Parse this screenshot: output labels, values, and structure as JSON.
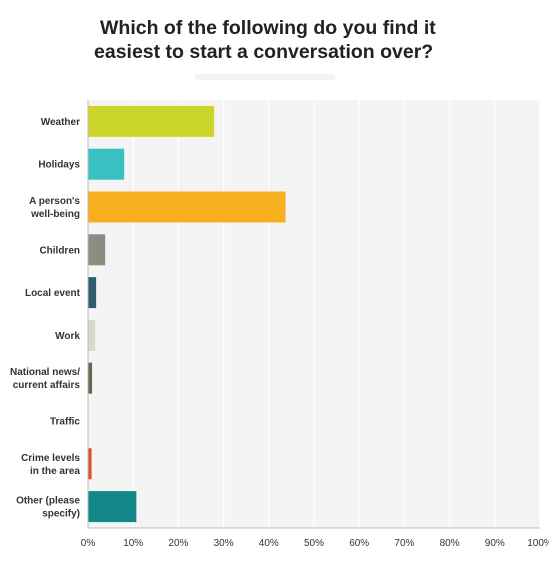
{
  "title_line1": "Which of the following do you find it",
  "title_line2": "easiest to start a conversation over?",
  "chart_data": {
    "type": "bar",
    "orientation": "horizontal",
    "title": "Which of the following do you find it easiest to start a conversation over?",
    "categories": [
      [
        "Weather"
      ],
      [
        "Holidays"
      ],
      [
        "A person's",
        "well-being"
      ],
      [
        "Children"
      ],
      [
        "Local event"
      ],
      [
        "Work"
      ],
      [
        "National news/",
        "current affairs"
      ],
      [
        "Traffic"
      ],
      [
        "Crime levels",
        "in the area"
      ],
      [
        "Other (please",
        "specify)"
      ]
    ],
    "values": [
      27.9,
      8.0,
      43.7,
      3.8,
      1.8,
      1.6,
      0.9,
      0,
      0.8,
      10.7
    ],
    "colors": [
      "#ccd62a",
      "#39c0c0",
      "#f7ae1f",
      "#8c8c80",
      "#2f5d6b",
      "#d8d8ce",
      "#5f6a4f",
      "#cccccc",
      "#e0522c",
      "#12888a"
    ],
    "xlim": [
      0,
      100
    ],
    "xticks": [
      "0%",
      "10%",
      "20%",
      "30%",
      "40%",
      "50%",
      "60%",
      "70%",
      "80%",
      "90%",
      "100%"
    ],
    "grid": true
  }
}
